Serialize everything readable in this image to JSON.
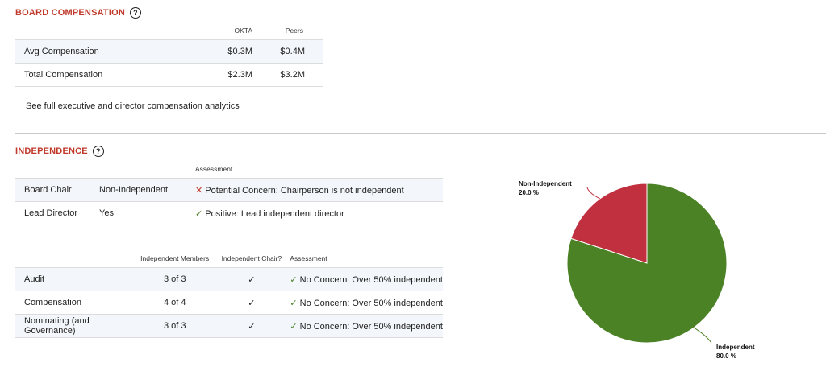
{
  "board_compensation": {
    "title": "BOARD COMPENSATION",
    "help_icon": "?",
    "columns": [
      "OKTA",
      "Peers"
    ],
    "rows": [
      {
        "label": "Avg Compensation",
        "okta": "$0.3M",
        "peers": "$0.4M"
      },
      {
        "label": "Total Compensation",
        "okta": "$2.3M",
        "peers": "$3.2M"
      }
    ],
    "link_text": "See full executive and director compensation analytics"
  },
  "independence": {
    "title": "INDEPENDENCE",
    "help_icon": "?",
    "leadership": {
      "header": "Assessment",
      "rows": [
        {
          "label": "Board Chair",
          "value": "Non-Independent",
          "mark": "✕",
          "assessment": "Potential Concern: Chairperson is not independent"
        },
        {
          "label": "Lead Director",
          "value": "Yes",
          "mark": "✓",
          "assessment": "Positive: Lead independent director"
        }
      ]
    },
    "committees": {
      "headers": [
        "Independent Members",
        "Independent Chair?",
        "Assessment"
      ],
      "rows": [
        {
          "name": "Audit",
          "members": "3 of 3",
          "chair": "✓",
          "mark": "✓",
          "assessment": "No Concern: Over 50% independent"
        },
        {
          "name": "Compensation",
          "members": "4 of 4",
          "chair": "✓",
          "mark": "✓",
          "assessment": "No Concern: Over 50% independent"
        },
        {
          "name": "Nominating (and Governance)",
          "members": "3 of 3",
          "chair": "✓",
          "mark": "✓",
          "assessment": "No Concern: Over 50% independent"
        }
      ]
    }
  },
  "chart_data": {
    "type": "pie",
    "slices": [
      {
        "label": "Non-Independent",
        "value": 20.0,
        "value_label": "20.0 %",
        "color": "#c0303e"
      },
      {
        "label": "Independent",
        "value": 80.0,
        "value_label": "80.0 %",
        "color": "#4c8226"
      }
    ]
  }
}
